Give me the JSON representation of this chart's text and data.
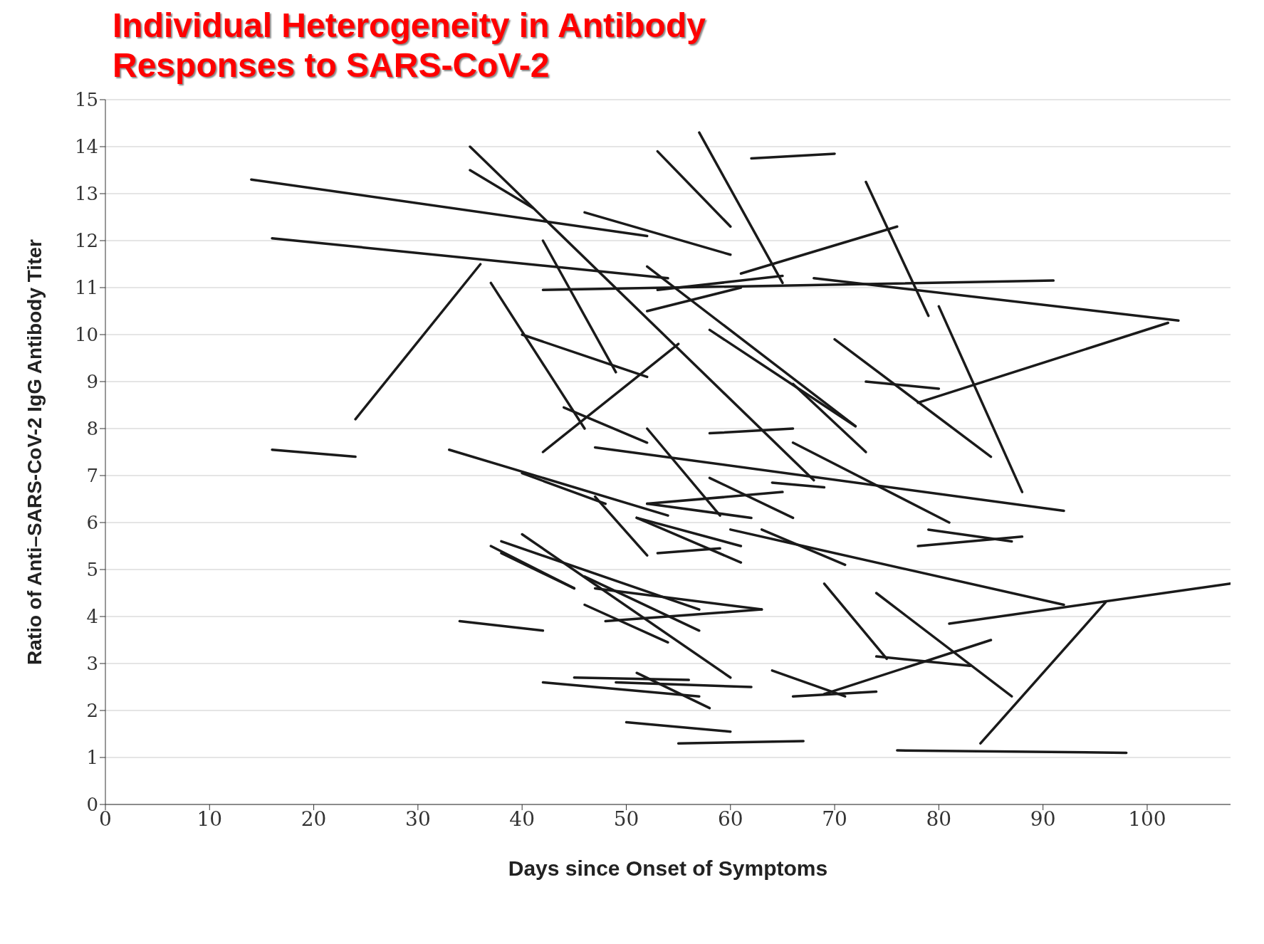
{
  "chart_data": {
    "type": "line",
    "title": "Individual Heterogeneity in Antibody\nResponses to SARS-CoV-2",
    "xlabel": "Days since Onset of Symptoms",
    "ylabel": "Ratio of Anti–SARS-CoV-2 IgG Antibody Titer",
    "xlim": [
      0,
      108
    ],
    "xticks": [
      0,
      10,
      20,
      30,
      40,
      50,
      60,
      70,
      80,
      90,
      100
    ],
    "ylim": [
      0,
      15
    ],
    "yticks": [
      0,
      1,
      2,
      3,
      4,
      5,
      6,
      7,
      8,
      9,
      10,
      11,
      12,
      13,
      14,
      15
    ],
    "grid": "y",
    "marker": "none",
    "line_style": "solid",
    "color": "#1a1a1a",
    "series": [
      {
        "x": [
          14,
          52
        ],
        "values": [
          13.3,
          12.1
        ]
      },
      {
        "x": [
          16,
          54
        ],
        "values": [
          12.05,
          11.2
        ]
      },
      {
        "x": [
          16,
          24
        ],
        "values": [
          7.55,
          7.4
        ]
      },
      {
        "x": [
          24,
          36
        ],
        "values": [
          8.2,
          11.5
        ]
      },
      {
        "x": [
          34,
          42
        ],
        "values": [
          3.9,
          3.7
        ]
      },
      {
        "x": [
          33,
          54
        ],
        "values": [
          7.55,
          6.15
        ]
      },
      {
        "x": [
          35,
          68
        ],
        "values": [
          14,
          6.9
        ]
      },
      {
        "x": [
          35,
          41
        ],
        "values": [
          13.5,
          12.7
        ]
      },
      {
        "x": [
          37,
          46
        ],
        "values": [
          11.1,
          8
        ]
      },
      {
        "x": [
          37,
          45
        ],
        "values": [
          5.5,
          4.6
        ]
      },
      {
        "x": [
          38,
          57
        ],
        "values": [
          5.6,
          4.15
        ]
      },
      {
        "x": [
          38,
          45
        ],
        "values": [
          5.35,
          4.6
        ]
      },
      {
        "x": [
          40,
          60
        ],
        "values": [
          5.75,
          2.7
        ]
      },
      {
        "x": [
          40,
          52
        ],
        "values": [
          10,
          9.1
        ]
      },
      {
        "x": [
          40,
          48
        ],
        "values": [
          7.05,
          6.4
        ]
      },
      {
        "x": [
          42,
          49
        ],
        "values": [
          12,
          9.2
        ]
      },
      {
        "x": [
          42,
          91
        ],
        "values": [
          10.95,
          11.15
        ]
      },
      {
        "x": [
          42,
          55
        ],
        "values": [
          7.5,
          9.8
        ]
      },
      {
        "x": [
          42,
          57
        ],
        "values": [
          2.6,
          2.3
        ]
      },
      {
        "x": [
          44,
          52
        ],
        "values": [
          8.45,
          7.7
        ]
      },
      {
        "x": [
          45,
          56
        ],
        "values": [
          2.7,
          2.65
        ]
      },
      {
        "x": [
          46,
          57
        ],
        "values": [
          4.85,
          3.7
        ]
      },
      {
        "x": [
          46,
          54
        ],
        "values": [
          4.25,
          3.45
        ]
      },
      {
        "x": [
          46,
          60
        ],
        "values": [
          12.6,
          11.7
        ]
      },
      {
        "x": [
          47,
          92
        ],
        "values": [
          7.6,
          6.25
        ]
      },
      {
        "x": [
          47,
          63
        ],
        "values": [
          4.6,
          4.15
        ]
      },
      {
        "x": [
          47,
          52
        ],
        "values": [
          6.55,
          5.3
        ]
      },
      {
        "x": [
          48,
          63
        ],
        "values": [
          3.9,
          4.15
        ]
      },
      {
        "x": [
          49,
          62
        ],
        "values": [
          2.6,
          2.5
        ]
      },
      {
        "x": [
          50,
          60
        ],
        "values": [
          1.75,
          1.55
        ]
      },
      {
        "x": [
          51,
          61
        ],
        "values": [
          6.1,
          5.5
        ]
      },
      {
        "x": [
          51,
          61
        ],
        "values": [
          6.1,
          5.15
        ]
      },
      {
        "x": [
          51,
          58
        ],
        "values": [
          2.8,
          2.05
        ]
      },
      {
        "x": [
          52,
          59
        ],
        "values": [
          8,
          6.15
        ]
      },
      {
        "x": [
          52,
          65
        ],
        "values": [
          6.4,
          6.65
        ]
      },
      {
        "x": [
          52,
          62
        ],
        "values": [
          6.4,
          6.1
        ]
      },
      {
        "x": [
          52,
          72
        ],
        "values": [
          11.45,
          8.05
        ]
      },
      {
        "x": [
          52,
          61
        ],
        "values": [
          10.5,
          11
        ]
      },
      {
        "x": [
          53,
          60
        ],
        "values": [
          13.9,
          12.3
        ]
      },
      {
        "x": [
          53,
          59
        ],
        "values": [
          5.35,
          5.45
        ]
      },
      {
        "x": [
          53,
          65
        ],
        "values": [
          10.95,
          11.25
        ]
      },
      {
        "x": [
          55,
          67
        ],
        "values": [
          1.3,
          1.35
        ]
      },
      {
        "x": [
          57,
          65
        ],
        "values": [
          14.3,
          11.1
        ]
      },
      {
        "x": [
          58,
          72
        ],
        "values": [
          10.1,
          8.05
        ]
      },
      {
        "x": [
          58,
          66
        ],
        "values": [
          7.9,
          8
        ]
      },
      {
        "x": [
          58,
          66
        ],
        "values": [
          6.95,
          6.1
        ]
      },
      {
        "x": [
          60,
          92
        ],
        "values": [
          5.85,
          4.25
        ]
      },
      {
        "x": [
          62,
          70
        ],
        "values": [
          13.75,
          13.85
        ]
      },
      {
        "x": [
          61,
          76
        ],
        "values": [
          11.3,
          12.3
        ]
      },
      {
        "x": [
          63,
          71
        ],
        "values": [
          5.85,
          5.1
        ]
      },
      {
        "x": [
          64,
          69
        ],
        "values": [
          6.85,
          6.75
        ]
      },
      {
        "x": [
          64,
          71
        ],
        "values": [
          2.85,
          2.3
        ]
      },
      {
        "x": [
          66,
          81
        ],
        "values": [
          7.7,
          6
        ]
      },
      {
        "x": [
          66,
          73
        ],
        "values": [
          8.95,
          7.5
        ]
      },
      {
        "x": [
          66,
          74
        ],
        "values": [
          2.3,
          2.4
        ]
      },
      {
        "x": [
          68,
          103
        ],
        "values": [
          11.2,
          10.3
        ]
      },
      {
        "x": [
          69,
          75
        ],
        "values": [
          4.7,
          3.1
        ]
      },
      {
        "x": [
          69,
          85
        ],
        "values": [
          2.35,
          3.5
        ]
      },
      {
        "x": [
          70,
          85
        ],
        "values": [
          9.9,
          7.4
        ]
      },
      {
        "x": [
          73,
          79
        ],
        "values": [
          13.25,
          10.4
        ]
      },
      {
        "x": [
          73,
          80
        ],
        "values": [
          9,
          8.85
        ]
      },
      {
        "x": [
          74,
          87
        ],
        "values": [
          4.5,
          2.3
        ]
      },
      {
        "x": [
          74,
          83
        ],
        "values": [
          3.15,
          2.95
        ]
      },
      {
        "x": [
          76,
          98
        ],
        "values": [
          1.15,
          1.1
        ]
      },
      {
        "x": [
          78,
          102
        ],
        "values": [
          8.55,
          10.25
        ]
      },
      {
        "x": [
          78,
          88
        ],
        "values": [
          5.5,
          5.7
        ]
      },
      {
        "x": [
          79,
          87
        ],
        "values": [
          5.85,
          5.6
        ]
      },
      {
        "x": [
          80,
          88
        ],
        "values": [
          10.6,
          6.65
        ]
      },
      {
        "x": [
          81,
          108
        ],
        "values": [
          3.85,
          4.7
        ]
      },
      {
        "x": [
          84,
          96
        ],
        "values": [
          1.3,
          4.3
        ]
      }
    ]
  }
}
